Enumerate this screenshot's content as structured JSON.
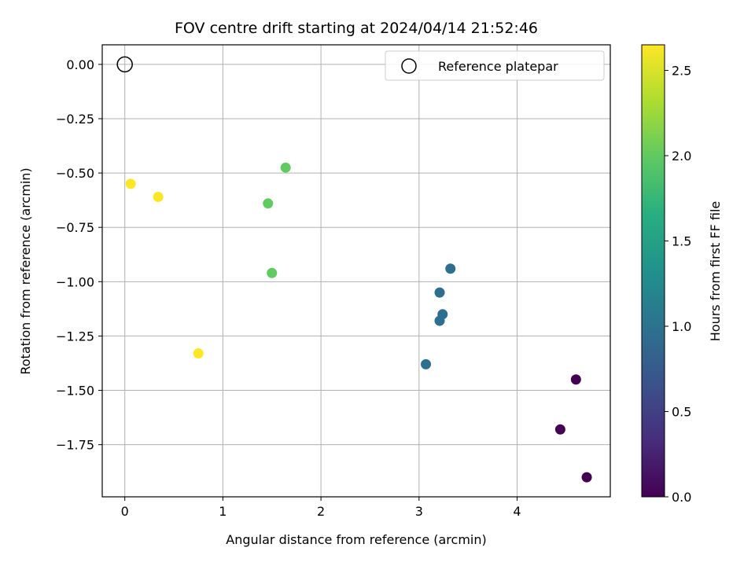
{
  "chart_data": {
    "type": "scatter",
    "title": "FOV centre drift starting at 2024/04/14 21:52:46",
    "xlabel": "Angular distance from reference (arcmin)",
    "ylabel": "Rotation from reference (arcmin)",
    "xlim": [
      -0.23,
      4.95
    ],
    "ylim": [
      -1.99,
      0.09
    ],
    "xticks": [
      0,
      1,
      2,
      3,
      4
    ],
    "xtick_labels": [
      "0",
      "1",
      "2",
      "3",
      "4"
    ],
    "yticks": [
      0.0,
      -0.25,
      -0.5,
      -0.75,
      -1.0,
      -1.25,
      -1.5,
      -1.75
    ],
    "ytick_labels": [
      "0.00",
      "−0.25",
      "−0.50",
      "−0.75",
      "−1.00",
      "−1.25",
      "−1.50",
      "−1.75"
    ],
    "grid": true,
    "legend": {
      "position": "top-right",
      "entries": [
        "Reference platepar"
      ]
    },
    "reference_point": {
      "x": 0.0,
      "y": 0.0,
      "label": "Reference platepar"
    },
    "colorbar": {
      "label": "Hours from first FF file",
      "colormap": "viridis",
      "range": [
        0.0,
        2.65
      ],
      "ticks": [
        0.0,
        0.5,
        1.0,
        1.5,
        2.0,
        2.5
      ],
      "tick_labels": [
        "0.0",
        "0.5",
        "1.0",
        "1.5",
        "2.0",
        "2.5"
      ]
    },
    "points": [
      {
        "x": 4.6,
        "y": -1.45,
        "hours": 0.0
      },
      {
        "x": 4.44,
        "y": -1.68,
        "hours": 0.0
      },
      {
        "x": 4.71,
        "y": -1.9,
        "hours": 0.0
      },
      {
        "x": 3.07,
        "y": -1.38,
        "hours": 0.95
      },
      {
        "x": 3.21,
        "y": -1.18,
        "hours": 0.95
      },
      {
        "x": 3.24,
        "y": -1.15,
        "hours": 0.95
      },
      {
        "x": 3.21,
        "y": -1.05,
        "hours": 0.95
      },
      {
        "x": 3.32,
        "y": -0.94,
        "hours": 0.95
      },
      {
        "x": 1.46,
        "y": -0.64,
        "hours": 2.0
      },
      {
        "x": 1.64,
        "y": -0.475,
        "hours": 2.0
      },
      {
        "x": 1.5,
        "y": -0.96,
        "hours": 2.0
      },
      {
        "x": 0.06,
        "y": -0.55,
        "hours": 2.65
      },
      {
        "x": 0.34,
        "y": -0.61,
        "hours": 2.65
      },
      {
        "x": 0.75,
        "y": -1.33,
        "hours": 2.65
      }
    ]
  }
}
